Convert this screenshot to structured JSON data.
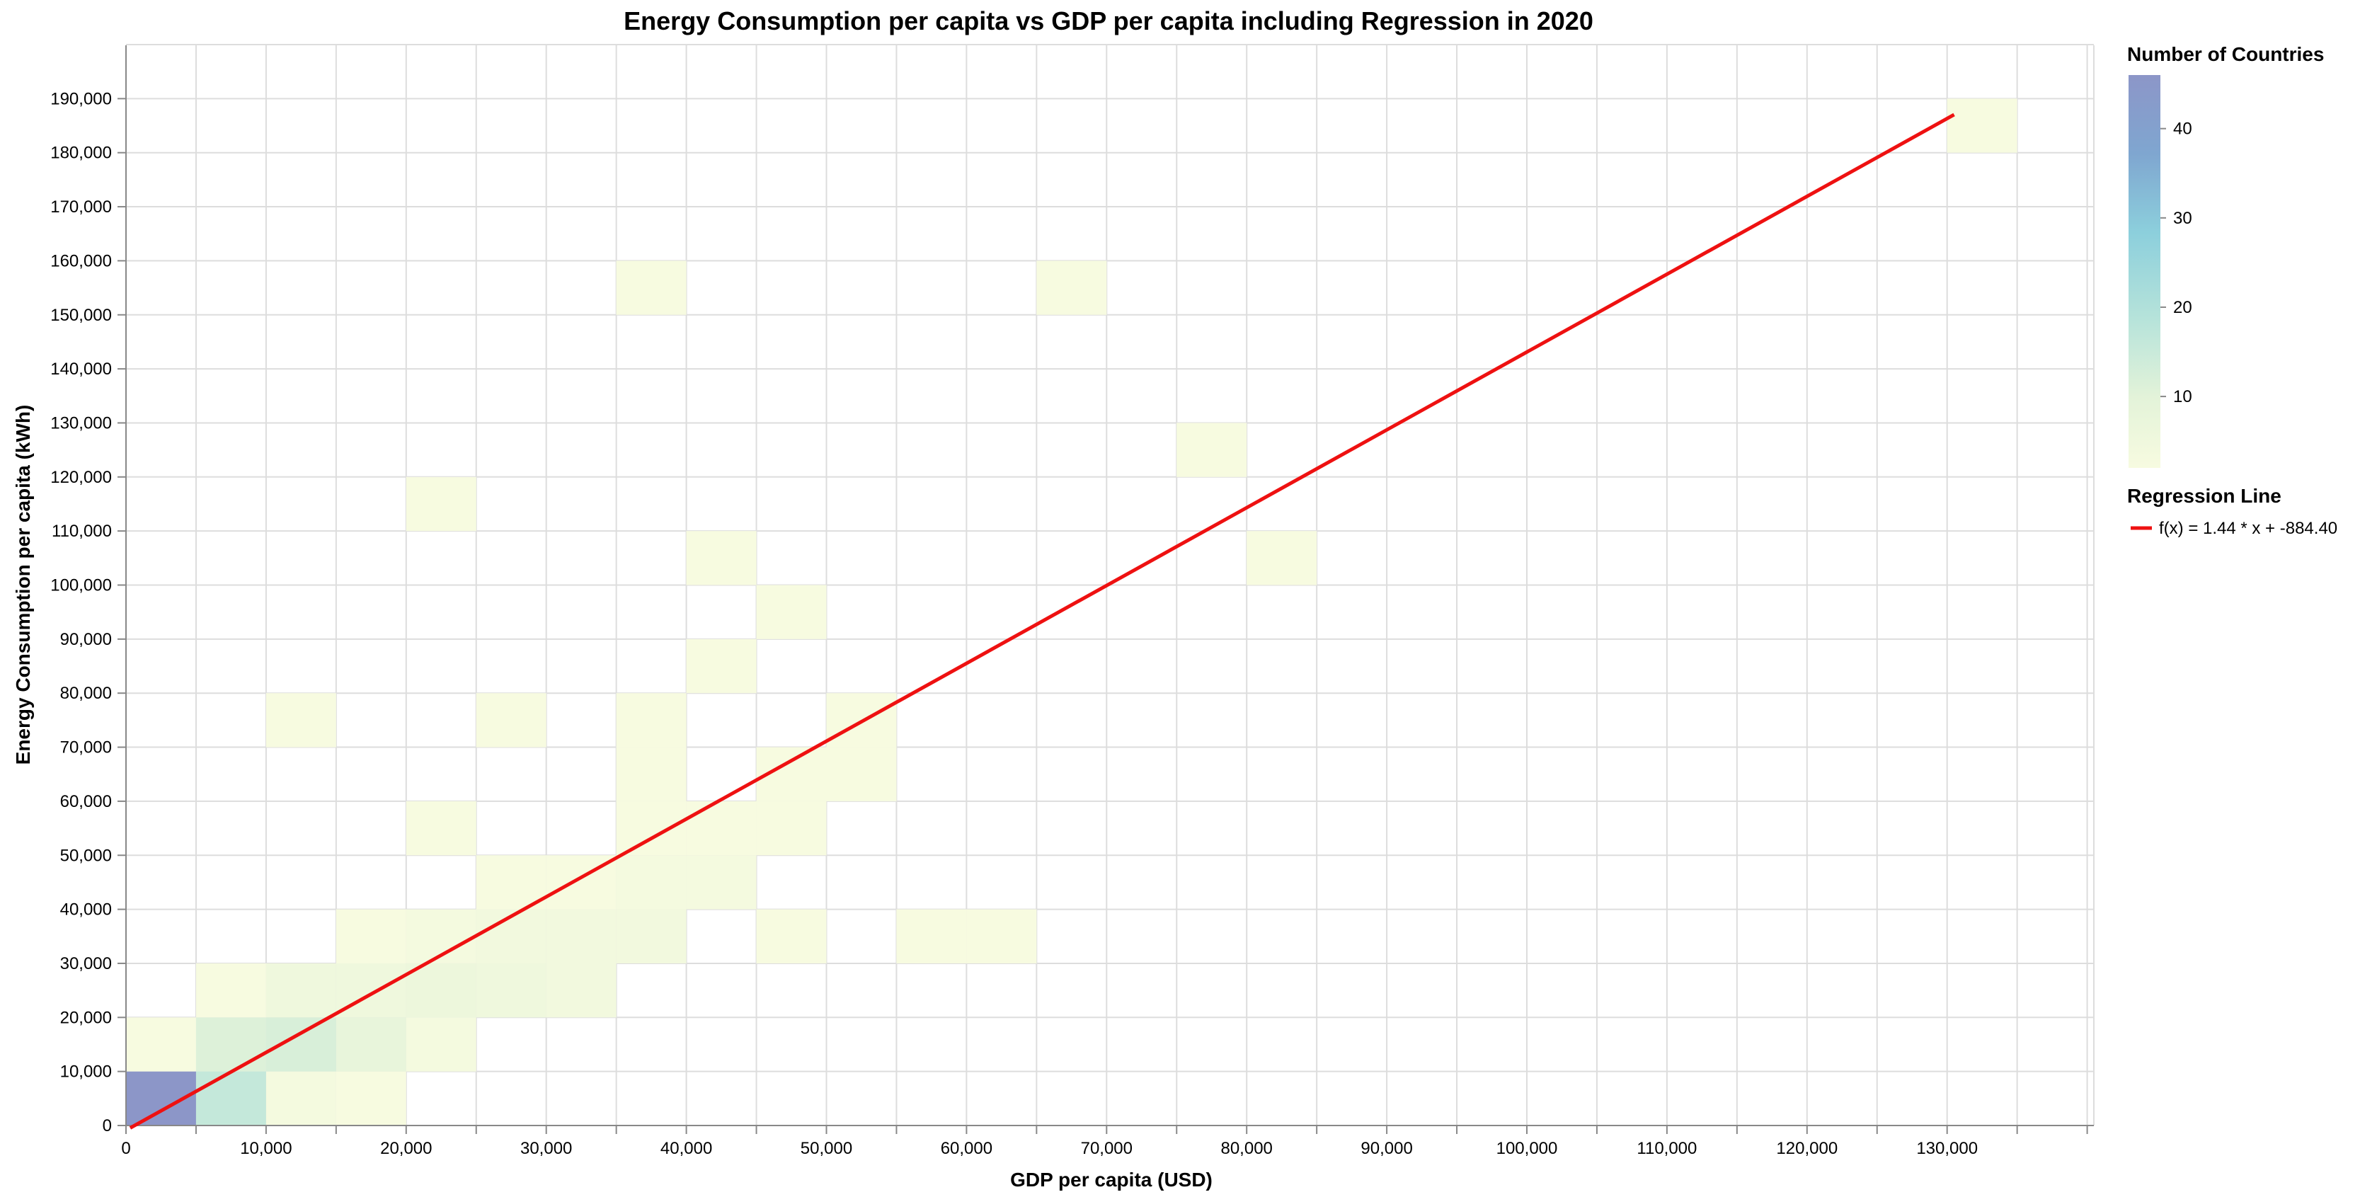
{
  "chart_data": {
    "type": "heatmap",
    "title": "Energy Consumption per capita vs GDP per capita including Regression in 2020",
    "xlabel": "GDP per capita (USD)",
    "ylabel": "Energy Consumption per capita (kWh)",
    "xlim": [
      0,
      140000
    ],
    "ylim": [
      0,
      200000
    ],
    "x_ticks": [
      0,
      10000,
      20000,
      30000,
      40000,
      50000,
      60000,
      70000,
      80000,
      90000,
      100000,
      110000,
      120000,
      130000
    ],
    "x_tick_labels": [
      "0",
      "10,000",
      "20,000",
      "30,000",
      "40,000",
      "50,000",
      "60,000",
      "70,000",
      "80,000",
      "90,000",
      "100,000",
      "110,000",
      "120,000",
      "130,000"
    ],
    "y_ticks": [
      0,
      10000,
      20000,
      30000,
      40000,
      50000,
      60000,
      70000,
      80000,
      90000,
      100000,
      110000,
      120000,
      130000,
      140000,
      150000,
      160000,
      170000,
      180000,
      190000
    ],
    "y_tick_labels": [
      "0",
      "10,000",
      "20,000",
      "30,000",
      "40,000",
      "50,000",
      "60,000",
      "70,000",
      "80,000",
      "90,000",
      "100,000",
      "110,000",
      "120,000",
      "130,000",
      "140,000",
      "150,000",
      "160,000",
      "170,000",
      "180,000",
      "190,000"
    ],
    "x_bin_width": 5000,
    "y_bin_height": 10000,
    "grid": true,
    "cells": [
      {
        "x": 0,
        "y": 0,
        "count": 46
      },
      {
        "x": 5000,
        "y": 0,
        "count": 16
      },
      {
        "x": 10000,
        "y": 0,
        "count": 3
      },
      {
        "x": 15000,
        "y": 0,
        "count": 2
      },
      {
        "x": 0,
        "y": 10000,
        "count": 2
      },
      {
        "x": 5000,
        "y": 10000,
        "count": 11
      },
      {
        "x": 10000,
        "y": 10000,
        "count": 12
      },
      {
        "x": 15000,
        "y": 10000,
        "count": 8
      },
      {
        "x": 20000,
        "y": 10000,
        "count": 3
      },
      {
        "x": 5000,
        "y": 20000,
        "count": 2
      },
      {
        "x": 10000,
        "y": 20000,
        "count": 5
      },
      {
        "x": 15000,
        "y": 20000,
        "count": 5
      },
      {
        "x": 20000,
        "y": 20000,
        "count": 6
      },
      {
        "x": 25000,
        "y": 20000,
        "count": 5
      },
      {
        "x": 30000,
        "y": 20000,
        "count": 4
      },
      {
        "x": 15000,
        "y": 30000,
        "count": 2
      },
      {
        "x": 20000,
        "y": 30000,
        "count": 3
      },
      {
        "x": 25000,
        "y": 30000,
        "count": 4
      },
      {
        "x": 30000,
        "y": 30000,
        "count": 4
      },
      {
        "x": 35000,
        "y": 30000,
        "count": 4
      },
      {
        "x": 45000,
        "y": 30000,
        "count": 2
      },
      {
        "x": 55000,
        "y": 30000,
        "count": 2
      },
      {
        "x": 60000,
        "y": 30000,
        "count": 2
      },
      {
        "x": 25000,
        "y": 40000,
        "count": 2
      },
      {
        "x": 30000,
        "y": 40000,
        "count": 2
      },
      {
        "x": 35000,
        "y": 40000,
        "count": 3
      },
      {
        "x": 40000,
        "y": 40000,
        "count": 3
      },
      {
        "x": 20000,
        "y": 50000,
        "count": 2
      },
      {
        "x": 35000,
        "y": 50000,
        "count": 2
      },
      {
        "x": 40000,
        "y": 50000,
        "count": 2
      },
      {
        "x": 45000,
        "y": 50000,
        "count": 2
      },
      {
        "x": 35000,
        "y": 60000,
        "count": 2
      },
      {
        "x": 45000,
        "y": 60000,
        "count": 2
      },
      {
        "x": 50000,
        "y": 60000,
        "count": 2
      },
      {
        "x": 10000,
        "y": 70000,
        "count": 2
      },
      {
        "x": 25000,
        "y": 70000,
        "count": 2
      },
      {
        "x": 35000,
        "y": 70000,
        "count": 2
      },
      {
        "x": 50000,
        "y": 70000,
        "count": 2
      },
      {
        "x": 40000,
        "y": 80000,
        "count": 2
      },
      {
        "x": 45000,
        "y": 90000,
        "count": 2
      },
      {
        "x": 40000,
        "y": 100000,
        "count": 2
      },
      {
        "x": 80000,
        "y": 100000,
        "count": 2
      },
      {
        "x": 20000,
        "y": 110000,
        "count": 2
      },
      {
        "x": 75000,
        "y": 120000,
        "count": 2
      },
      {
        "x": 35000,
        "y": 150000,
        "count": 2
      },
      {
        "x": 65000,
        "y": 150000,
        "count": 2
      },
      {
        "x": 130000,
        "y": 180000,
        "count": 2
      }
    ],
    "regression": {
      "slope": 1.44,
      "intercept": -884.4,
      "x_start": 0,
      "x_end": 130500,
      "color": "#ee1111"
    },
    "color_scale": {
      "title": "Number of Countries",
      "domain": [
        2,
        46
      ],
      "ticks": [
        10,
        20,
        30,
        40
      ],
      "stops": [
        {
          "t": 0.0,
          "color": "#f7fbe0"
        },
        {
          "t": 0.18,
          "color": "#e3f3d9"
        },
        {
          "t": 0.38,
          "color": "#b6e3da"
        },
        {
          "t": 0.6,
          "color": "#8ccfdc"
        },
        {
          "t": 0.8,
          "color": "#7fa6d0"
        },
        {
          "t": 1.0,
          "color": "#8c96c8"
        }
      ]
    },
    "legend_placement": "right",
    "regression_legend": {
      "title": "Regression Line",
      "label": "f(x) = 1.44 * x + -884.40"
    }
  }
}
